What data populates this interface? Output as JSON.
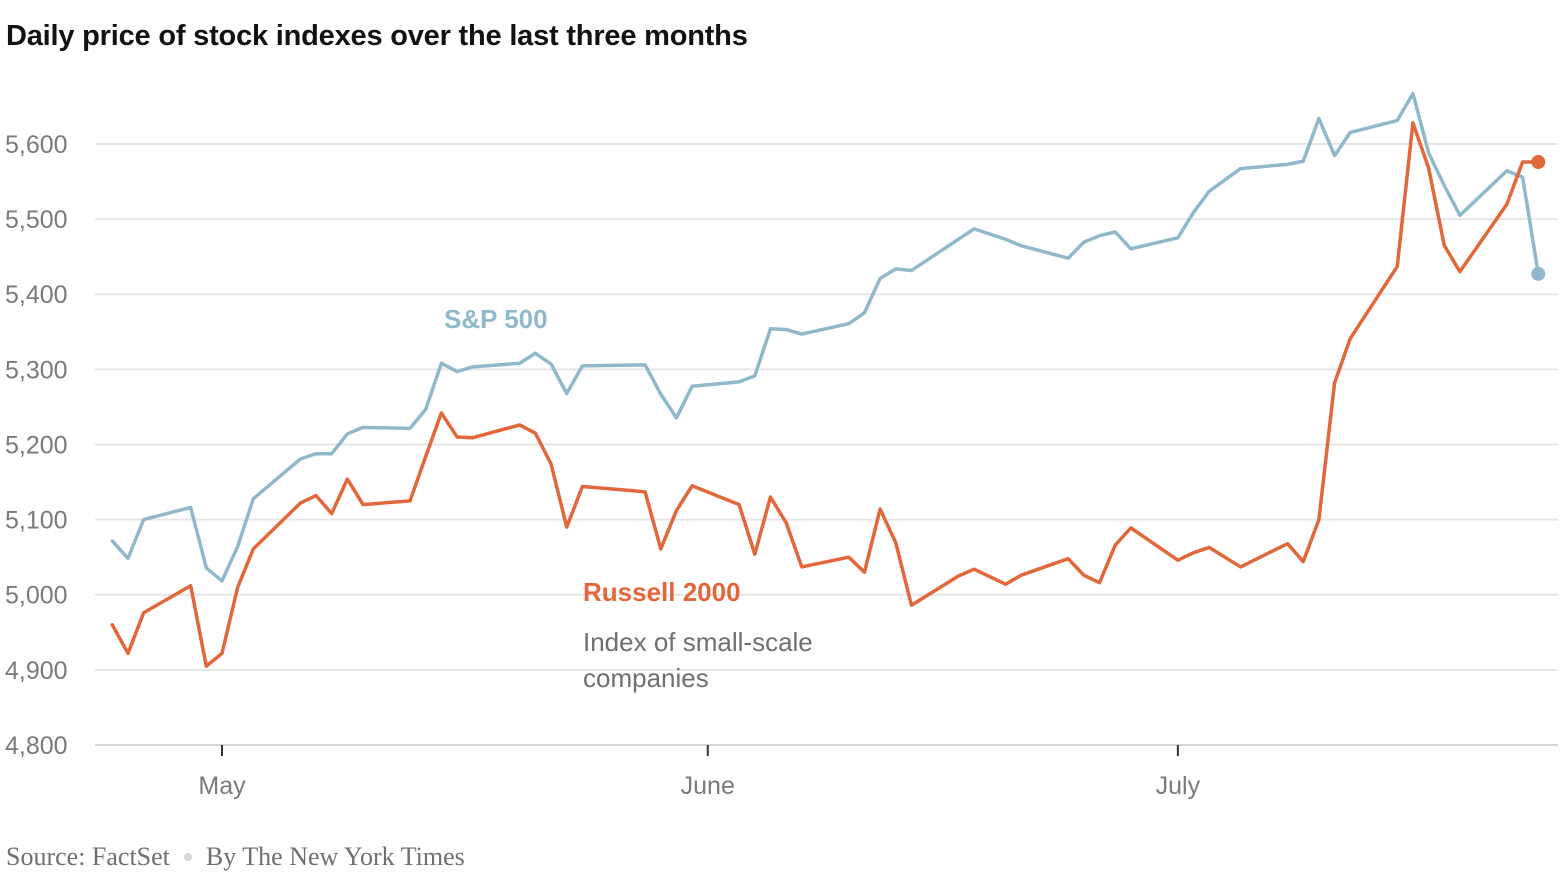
{
  "chart_data": {
    "type": "line",
    "title": "Daily price of stock indexes over the last three months",
    "xlabel": "",
    "ylabel": "",
    "ylim": [
      4800,
      5700
    ],
    "yticks": [
      4800,
      4900,
      5000,
      5100,
      5200,
      5300,
      5400,
      5500,
      5600
    ],
    "ytick_labels": [
      "4,800",
      "4,900",
      "5,000",
      "5,100",
      "5,200",
      "5,300",
      "5,400",
      "5,500",
      "5,600"
    ],
    "xticks": [
      {
        "date": "2024-05-01",
        "label": "May"
      },
      {
        "date": "2024-06-01",
        "label": "June"
      },
      {
        "date": "2024-07-01",
        "label": "July"
      }
    ],
    "grid": true,
    "legend": "inline labels",
    "series": [
      {
        "name": "S&P 500",
        "color": "#8fb9cb",
        "points": [
          [
            "2024-04-24",
            5071.6
          ],
          [
            "2024-04-25",
            5048.4
          ],
          [
            "2024-04-26",
            5100.0
          ],
          [
            "2024-04-29",
            5116.2
          ],
          [
            "2024-04-30",
            5035.7
          ],
          [
            "2024-05-01",
            5018.4
          ],
          [
            "2024-05-02",
            5064.2
          ],
          [
            "2024-05-03",
            5127.8
          ],
          [
            "2024-05-06",
            5180.7
          ],
          [
            "2024-05-07",
            5187.7
          ],
          [
            "2024-05-08",
            5187.7
          ],
          [
            "2024-05-09",
            5214.1
          ],
          [
            "2024-05-10",
            5222.7
          ],
          [
            "2024-05-13",
            5221.4
          ],
          [
            "2024-05-14",
            5246.7
          ],
          [
            "2024-05-15",
            5308.2
          ],
          [
            "2024-05-16",
            5297.1
          ],
          [
            "2024-05-17",
            5303.3
          ],
          [
            "2024-05-20",
            5308.1
          ],
          [
            "2024-05-21",
            5321.4
          ],
          [
            "2024-05-22",
            5307.0
          ],
          [
            "2024-05-23",
            5267.8
          ],
          [
            "2024-05-24",
            5304.7
          ],
          [
            "2024-05-28",
            5306.0
          ],
          [
            "2024-05-29",
            5267.0
          ],
          [
            "2024-05-30",
            5235.5
          ],
          [
            "2024-05-31",
            5277.5
          ],
          [
            "2024-06-03",
            5283.4
          ],
          [
            "2024-06-04",
            5291.3
          ],
          [
            "2024-06-05",
            5354.0
          ],
          [
            "2024-06-06",
            5353.0
          ],
          [
            "2024-06-07",
            5347.0
          ],
          [
            "2024-06-10",
            5360.8
          ],
          [
            "2024-06-11",
            5375.3
          ],
          [
            "2024-06-12",
            5421.0
          ],
          [
            "2024-06-13",
            5433.7
          ],
          [
            "2024-06-14",
            5431.6
          ],
          [
            "2024-06-17",
            5473.2
          ],
          [
            "2024-06-18",
            5487.0
          ],
          [
            "2024-06-20",
            5473.2
          ],
          [
            "2024-06-21",
            5464.6
          ],
          [
            "2024-06-24",
            5447.9
          ],
          [
            "2024-06-25",
            5469.3
          ],
          [
            "2024-06-26",
            5477.9
          ],
          [
            "2024-06-27",
            5482.9
          ],
          [
            "2024-06-28",
            5460.5
          ],
          [
            "2024-07-01",
            5475.1
          ],
          [
            "2024-07-02",
            5509.0
          ],
          [
            "2024-07-03",
            5537.0
          ],
          [
            "2024-07-05",
            5567.2
          ],
          [
            "2024-07-08",
            5572.9
          ],
          [
            "2024-07-09",
            5577.0
          ],
          [
            "2024-07-10",
            5633.9
          ],
          [
            "2024-07-11",
            5584.5
          ],
          [
            "2024-07-12",
            5615.4
          ],
          [
            "2024-07-15",
            5631.2
          ],
          [
            "2024-07-16",
            5667.2
          ],
          [
            "2024-07-17",
            5588.3
          ],
          [
            "2024-07-18",
            5544.6
          ],
          [
            "2024-07-19",
            5505.0
          ],
          [
            "2024-07-22",
            5564.4
          ],
          [
            "2024-07-23",
            5555.7
          ],
          [
            "2024-07-24",
            5427.1
          ]
        ]
      },
      {
        "name": "Russell 2000",
        "description": "Index of small-scale companies",
        "color": "#e2673a",
        "points": [
          [
            "2024-04-24",
            4960
          ],
          [
            "2024-04-25",
            4922
          ],
          [
            "2024-04-26",
            4976
          ],
          [
            "2024-04-29",
            5012
          ],
          [
            "2024-04-30",
            4905
          ],
          [
            "2024-05-01",
            4922
          ],
          [
            "2024-05-02",
            5010
          ],
          [
            "2024-05-03",
            5061
          ],
          [
            "2024-05-06",
            5122
          ],
          [
            "2024-05-07",
            5132
          ],
          [
            "2024-05-08",
            5108
          ],
          [
            "2024-05-09",
            5154
          ],
          [
            "2024-05-10",
            5120
          ],
          [
            "2024-05-13",
            5125
          ],
          [
            "2024-05-14",
            5184
          ],
          [
            "2024-05-15",
            5242
          ],
          [
            "2024-05-16",
            5210
          ],
          [
            "2024-05-17",
            5209
          ],
          [
            "2024-05-20",
            5226
          ],
          [
            "2024-05-21",
            5215
          ],
          [
            "2024-05-22",
            5174
          ],
          [
            "2024-05-23",
            5090
          ],
          [
            "2024-05-24",
            5144
          ],
          [
            "2024-05-28",
            5137
          ],
          [
            "2024-05-29",
            5061
          ],
          [
            "2024-05-30",
            5112
          ],
          [
            "2024-05-31",
            5145
          ],
          [
            "2024-06-03",
            5120
          ],
          [
            "2024-06-04",
            5054
          ],
          [
            "2024-06-05",
            5130
          ],
          [
            "2024-06-06",
            5096
          ],
          [
            "2024-06-07",
            5037
          ],
          [
            "2024-06-10",
            5050
          ],
          [
            "2024-06-11",
            5030
          ],
          [
            "2024-06-12",
            5114
          ],
          [
            "2024-06-13",
            5069
          ],
          [
            "2024-06-14",
            4986
          ],
          [
            "2024-06-17",
            5025
          ],
          [
            "2024-06-18",
            5034
          ],
          [
            "2024-06-20",
            5014
          ],
          [
            "2024-06-21",
            5026
          ],
          [
            "2024-06-24",
            5048
          ],
          [
            "2024-06-25",
            5026
          ],
          [
            "2024-06-26",
            5016
          ],
          [
            "2024-06-27",
            5066
          ],
          [
            "2024-06-28",
            5089
          ],
          [
            "2024-07-01",
            5046
          ],
          [
            "2024-07-02",
            5056
          ],
          [
            "2024-07-03",
            5063
          ],
          [
            "2024-07-05",
            5037
          ],
          [
            "2024-07-08",
            5068
          ],
          [
            "2024-07-09",
            5044
          ],
          [
            "2024-07-10",
            5100
          ],
          [
            "2024-07-11",
            5282
          ],
          [
            "2024-07-12",
            5341
          ],
          [
            "2024-07-15",
            5437
          ],
          [
            "2024-07-16",
            5628
          ],
          [
            "2024-07-17",
            5568
          ],
          [
            "2024-07-18",
            5465
          ],
          [
            "2024-07-19",
            5430
          ],
          [
            "2024-07-22",
            5520
          ],
          [
            "2024-07-23",
            5576
          ],
          [
            "2024-07-24",
            5576
          ]
        ]
      }
    ]
  },
  "footer": {
    "source": "Source: FactSet",
    "byline": "By The New York Times"
  }
}
